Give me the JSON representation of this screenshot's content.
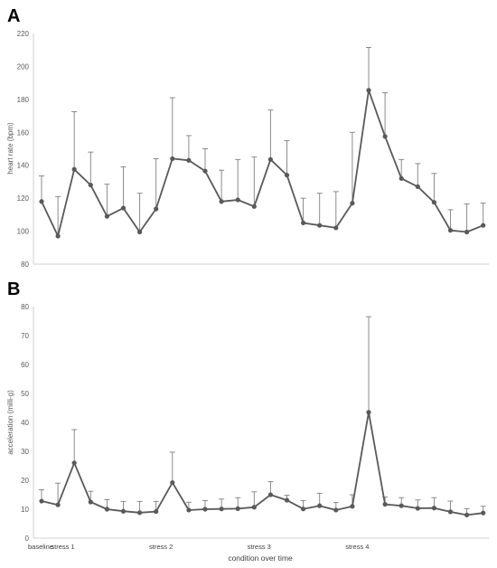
{
  "chart_data": [
    {
      "panel": "A",
      "type": "line",
      "title": "",
      "xlabel": "",
      "ylabel": "heart rate (bpm)",
      "ylim": [
        80,
        220
      ],
      "yticks": [
        80,
        100,
        120,
        140,
        160,
        180,
        200,
        220
      ],
      "grid": false,
      "error_bars": "upper",
      "series_color": "#595959",
      "errorbar_color": "#7f7f7f",
      "x": [
        1,
        2,
        3,
        4,
        5,
        6,
        7,
        8,
        9,
        10,
        11,
        12,
        13,
        14,
        15,
        16,
        17,
        18,
        19,
        20,
        21,
        22,
        23,
        24,
        25,
        26,
        27,
        28
      ],
      "values": [
        118,
        97,
        137.5,
        128,
        109,
        114,
        99.5,
        113.5,
        144,
        143,
        136.5,
        118,
        119,
        115,
        143.5,
        134,
        105,
        103.5,
        102,
        117,
        185.5,
        157.5,
        132,
        127,
        117.5,
        100.5,
        99.5,
        103.5
      ],
      "upper_error": [
        133.5,
        121,
        172.5,
        148,
        128.5,
        139,
        123,
        144,
        181,
        158,
        150,
        137,
        143.5,
        145,
        173.5,
        155,
        120,
        123,
        124,
        160,
        211.5,
        184,
        143.5,
        141,
        135,
        113,
        116.5,
        117
      ]
    },
    {
      "panel": "B",
      "type": "line",
      "title": "",
      "xlabel": "condition over time",
      "ylabel": "acceleration (milli-g)",
      "ylim": [
        0,
        80
      ],
      "yticks": [
        0,
        10,
        20,
        30,
        40,
        50,
        60,
        70,
        80
      ],
      "grid": false,
      "error_bars": "upper",
      "series_color": "#595959",
      "errorbar_color": "#7f7f7f",
      "x": [
        1,
        2,
        3,
        4,
        5,
        6,
        7,
        8,
        9,
        10,
        11,
        12,
        13,
        14,
        15,
        16,
        17,
        18,
        19,
        20,
        21,
        22,
        23,
        24,
        25,
        26,
        27,
        28
      ],
      "values": [
        12.8,
        11.5,
        26,
        12.5,
        10,
        9.3,
        8.8,
        9.2,
        19.2,
        9.7,
        10,
        10.1,
        10.2,
        10.7,
        15,
        13.1,
        10.1,
        11.2,
        9.7,
        11,
        43.5,
        11.7,
        11.2,
        10.3,
        10.4,
        9.1,
        8,
        8.7
      ],
      "upper_error": [
        16.7,
        19,
        37.5,
        16.2,
        13.3,
        12.7,
        12.7,
        12.7,
        29.7,
        12.4,
        13,
        13.5,
        14,
        16,
        19.5,
        14.8,
        13,
        15.5,
        12.3,
        15,
        76.5,
        14.2,
        14,
        13.2,
        14,
        12.8,
        10.2,
        11
      ],
      "category_labels": [
        {
          "x": 0,
          "label": "baseline"
        },
        {
          "x": 2.3,
          "label": "stress 1"
        },
        {
          "x": 8.3,
          "label": "stress 2"
        },
        {
          "x": 14.3,
          "label": "stress 3"
        },
        {
          "x": 20.3,
          "label": "stress 4"
        }
      ]
    }
  ]
}
